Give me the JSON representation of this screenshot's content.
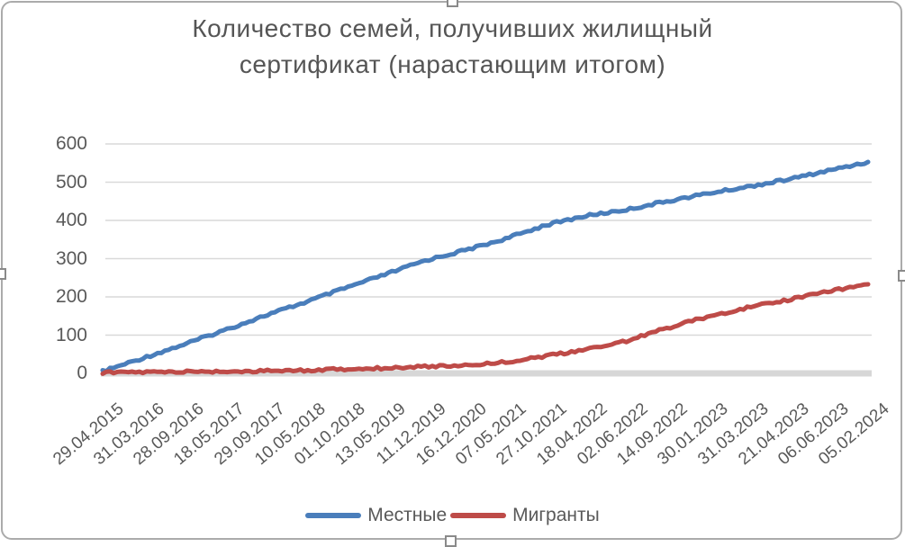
{
  "chart_data": {
    "type": "line",
    "title": "Количество семей, получивших жилищный сертификат (нарастающим итогом)",
    "title_lines": [
      "Количество семей, получивших жилищный",
      "сертификат (нарастающим итогом)"
    ],
    "categories": [
      "29.04.2015",
      "31.03.2016",
      "28.09.2016",
      "18.05.2017",
      "29.09.2017",
      "10.05.2018",
      "01.10.2018",
      "13.05.2019",
      "11.12.2019",
      "16.12.2020",
      "07.05.2021",
      "27.10.2021",
      "18.04.2022",
      "02.06.2022",
      "14.09.2022",
      "30.01.2023",
      "31.03.2023",
      "21.04.2023",
      "06.06.2023",
      "05.02.2024"
    ],
    "series": [
      {
        "name": "Местные",
        "color": "#4A7EBB",
        "values": [
          5,
          40,
          75,
          112,
          150,
          185,
          222,
          258,
          295,
          322,
          352,
          388,
          412,
          428,
          450,
          470,
          488,
          507,
          530,
          553
        ]
      },
      {
        "name": "Мигранты",
        "color": "#BE4B48",
        "values": [
          2,
          3,
          4,
          5,
          6,
          8,
          11,
          14,
          18,
          21,
          30,
          45,
          62,
          85,
          118,
          148,
          172,
          192,
          215,
          233
        ]
      }
    ],
    "ylim": [
      0,
      600
    ],
    "yticks": [
      0,
      100,
      200,
      300,
      400,
      500,
      600
    ],
    "grid": true,
    "legend_position": "bottom",
    "xlabel": "",
    "ylabel": ""
  },
  "colors": {
    "grid": "#d9d9d9",
    "axis_band": "#d7d7d7",
    "text": "#595959",
    "title_text": "#555555",
    "frame_border": "#ababab"
  }
}
